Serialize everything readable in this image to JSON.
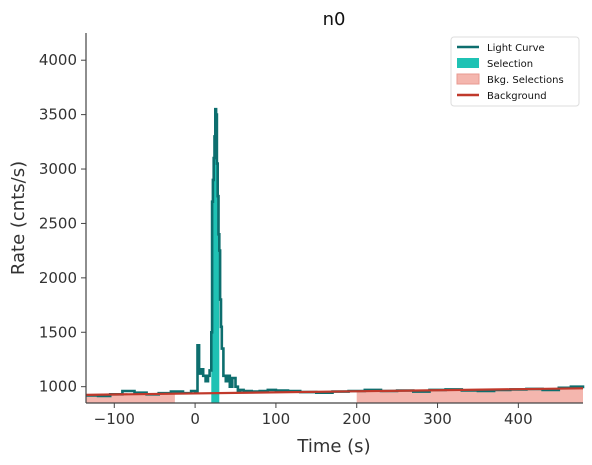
{
  "chart_data": {
    "type": "line",
    "title": "n0",
    "xlabel": "Time (s)",
    "ylabel": "Rate (cnts/s)",
    "xlim": [
      -135,
      480
    ],
    "ylim": [
      850,
      4250
    ],
    "xticks": [
      -100,
      0,
      100,
      200,
      300,
      400
    ],
    "xtick_labels": [
      "−100",
      "0",
      "100",
      "200",
      "300",
      "400"
    ],
    "yticks": [
      1000,
      1500,
      2000,
      2500,
      3000,
      3500,
      4000
    ],
    "ytick_labels": [
      "1000",
      "1500",
      "2000",
      "2500",
      "3000",
      "3500",
      "4000"
    ],
    "legend_placement": "top-right",
    "legend": [
      {
        "label": "Light Curve",
        "kind": "line",
        "color": "#0d6e6e"
      },
      {
        "label": "Selection",
        "kind": "patch",
        "color": "#1fc2b4"
      },
      {
        "label": "Bkg. Selections",
        "kind": "patch",
        "color": "#f4b6ae"
      },
      {
        "label": "Background",
        "kind": "line",
        "color": "#c0392b"
      }
    ],
    "light_curve": {
      "name": "Light Curve",
      "x": [
        -135,
        -120,
        -105,
        -90,
        -75,
        -60,
        -45,
        -30,
        -15,
        -5,
        0,
        3,
        5,
        8,
        10,
        13,
        16,
        18,
        20,
        21,
        22,
        23,
        24,
        25,
        26,
        27,
        28,
        29,
        30,
        31,
        32,
        33,
        35,
        38,
        40,
        43,
        46,
        50,
        53,
        56,
        60,
        70,
        80,
        90,
        100,
        115,
        130,
        150,
        170,
        190,
        210,
        230,
        250,
        270,
        290,
        310,
        330,
        350,
        370,
        390,
        410,
        430,
        450,
        465,
        480
      ],
      "y": [
        920,
        915,
        930,
        960,
        945,
        930,
        940,
        955,
        940,
        960,
        950,
        1380,
        1120,
        1160,
        1100,
        1050,
        1100,
        1150,
        1500,
        2700,
        2900,
        3100,
        3300,
        3550,
        3500,
        3050,
        2750,
        2400,
        2250,
        1800,
        1550,
        1350,
        1100,
        1050,
        1100,
        1000,
        1080,
        1000,
        960,
        970,
        960,
        955,
        960,
        970,
        965,
        960,
        950,
        945,
        955,
        960,
        970,
        960,
        965,
        955,
        970,
        975,
        965,
        960,
        970,
        975,
        980,
        970,
        990,
        1000,
        985
      ]
    },
    "selection": {
      "name": "Selection",
      "x_range": [
        20,
        30
      ]
    },
    "bkg_selections": {
      "name": "Bkg. Selections",
      "ranges": [
        [
          -135,
          -25
        ],
        [
          200,
          480
        ]
      ]
    },
    "background": {
      "name": "Background",
      "x": [
        -135,
        480
      ],
      "y": [
        925,
        985
      ]
    },
    "colors": {
      "light_curve": "#0d6e6e",
      "selection": "#1fc2b4",
      "bkg_selection": "#f4b6ae",
      "background": "#c0392b",
      "axis": "#444444"
    }
  }
}
